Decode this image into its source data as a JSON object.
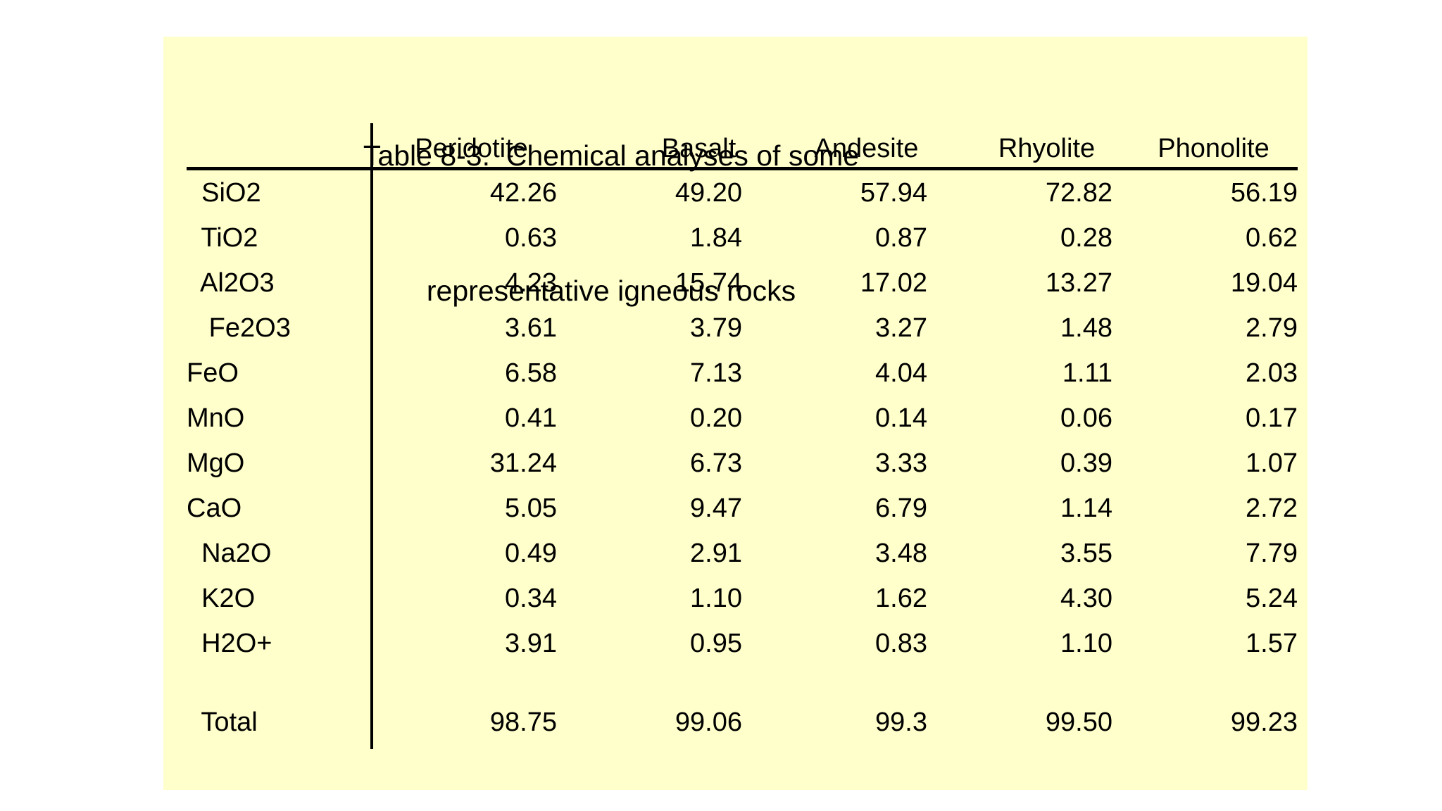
{
  "page": {
    "background_color": "#ffffff"
  },
  "panel": {
    "background_color": "#ffffcc",
    "text_color": "#000000",
    "rule_color": "#000000"
  },
  "chart_data": {
    "type": "table",
    "title": "Table 8-3.  Chemical analyses of some",
    "title_line2": "representative igneous rocks",
    "legend_position": "none",
    "grid": "off",
    "columns": [
      "",
      "Peridotite",
      "Basalt",
      "Andesite",
      "Rhyolite",
      "Phonolite"
    ],
    "rows": [
      {
        "label": "  SiO2",
        "values": [
          "42.26",
          "49.20",
          "57.94",
          "72.82",
          "56.19"
        ]
      },
      {
        "label": "  TiO2",
        "values": [
          "0.63",
          "1.84",
          "0.87",
          "0.28",
          "0.62"
        ]
      },
      {
        "label": "  Al2O3",
        "values": [
          "4.23",
          "15.74",
          "17.02",
          "13.27",
          "19.04"
        ]
      },
      {
        "label": "   Fe2O3",
        "values": [
          "3.61",
          "3.79",
          "3.27",
          "1.48",
          "2.79"
        ]
      },
      {
        "label": "FeO",
        "values": [
          "6.58",
          "7.13",
          "4.04",
          "1.11",
          "2.03"
        ]
      },
      {
        "label": "MnO",
        "values": [
          "0.41",
          "0.20",
          "0.14",
          "0.06",
          "0.17"
        ]
      },
      {
        "label": "MgO",
        "values": [
          "31.24",
          "6.73",
          "3.33",
          "0.39",
          "1.07"
        ]
      },
      {
        "label": "CaO",
        "values": [
          "5.05",
          "9.47",
          "6.79",
          "1.14",
          "2.72"
        ]
      },
      {
        "label": "  Na2O",
        "values": [
          "0.49",
          "2.91",
          "3.48",
          "3.55",
          "7.79"
        ]
      },
      {
        "label": "  K2O",
        "values": [
          "0.34",
          "1.10",
          "1.62",
          "4.30",
          "5.24"
        ]
      },
      {
        "label": "  H2O+",
        "values": [
          "3.91",
          "0.95",
          "0.83",
          "1.10",
          "1.57"
        ]
      },
      {
        "label": "",
        "values": [
          "",
          "",
          "",
          "",
          ""
        ]
      },
      {
        "label": "  Total",
        "values": [
          "98.75",
          "99.06",
          "99.3",
          "99.50",
          "99.23"
        ]
      }
    ]
  }
}
